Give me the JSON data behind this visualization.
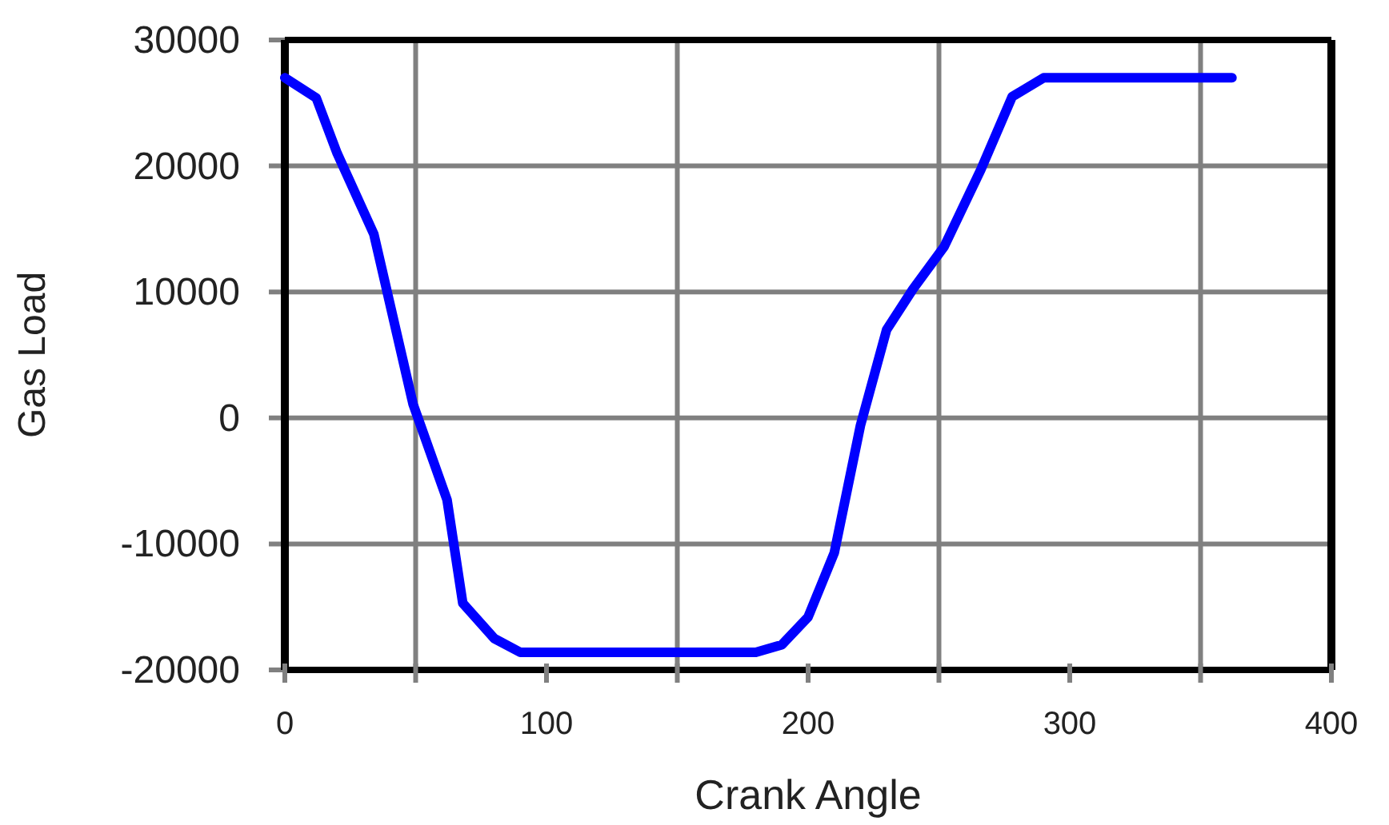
{
  "chart_data": {
    "type": "line",
    "xlabel": "Crank Angle",
    "ylabel": "Gas Load",
    "xlim": [
      0,
      400
    ],
    "xticks": [
      0,
      {
        "value": 50,
        "label": null
      },
      100,
      {
        "value": 150,
        "label": null
      },
      200,
      {
        "value": 250,
        "label": null
      },
      300,
      {
        "value": 350,
        "label": null
      },
      400
    ],
    "ylim": [
      -20000,
      30000
    ],
    "yticks": [
      -20000,
      -10000,
      0,
      10000,
      20000,
      30000
    ],
    "grid": true,
    "marker": "none",
    "line_style": "solid",
    "series": [
      {
        "color": "#0000ff",
        "x": [
          0,
          12,
          20,
          34,
          49,
          62,
          68,
          80,
          90,
          100,
          120,
          150,
          180,
          190,
          200,
          210,
          220,
          230,
          240,
          252,
          266,
          278,
          290,
          300,
          330,
          362
        ],
        "values": [
          27000,
          25400,
          21000,
          14600,
          1100,
          -6500,
          -14700,
          -17500,
          -18600,
          -18600,
          -18600,
          -18600,
          -18600,
          -18000,
          -15800,
          -10700,
          -600,
          7000,
          10200,
          13600,
          19700,
          25500,
          27000,
          27000,
          27000,
          27000
        ]
      }
    ]
  }
}
